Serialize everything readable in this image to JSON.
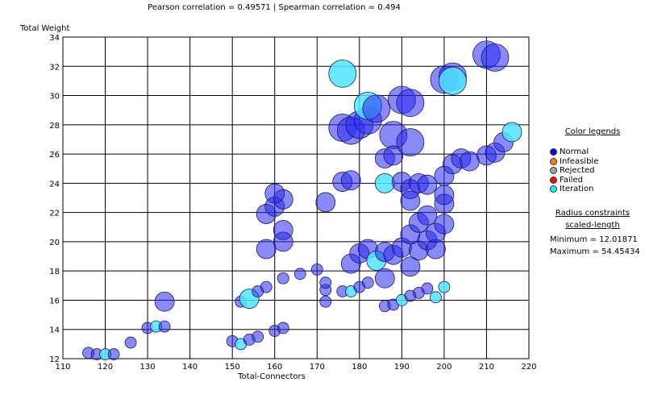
{
  "header": {
    "text": "Pearson correlation = 0.49571 | Spearman correlation = 0.494"
  },
  "legend": {
    "title": "Color legends",
    "items": [
      {
        "label": "Normal",
        "color": "#0000ff"
      },
      {
        "label": "Infeasible",
        "color": "#ff8000"
      },
      {
        "label": "Rejected",
        "color": "#a0a0a0"
      },
      {
        "label": "Failed",
        "color": "#ff0000"
      },
      {
        "label": "Iteration",
        "color": "#00ffff"
      }
    ]
  },
  "radius": {
    "title_line1": "Radius constraints",
    "title_line2": "scaled-length",
    "minimum": "Minimum = 12.01871",
    "maximum": "Maximum = 54.45434"
  },
  "chart_data": {
    "type": "scatter",
    "xlabel": "Total-Connectors",
    "ylabel": "Total Weight",
    "xlim": [
      110,
      220
    ],
    "ylim": [
      12,
      34
    ],
    "xticks": [
      110,
      120,
      130,
      140,
      150,
      160,
      170,
      180,
      190,
      200,
      210,
      220
    ],
    "yticks": [
      12,
      14,
      16,
      18,
      20,
      22,
      24,
      26,
      28,
      30,
      32,
      34
    ],
    "grid": true,
    "bubble_size_metric": "scaled-length",
    "points": [
      {
        "x": 116,
        "y": 12.4,
        "r": 1,
        "c": "Normal"
      },
      {
        "x": 118,
        "y": 12.3,
        "r": 1,
        "c": "Normal"
      },
      {
        "x": 120,
        "y": 12.3,
        "r": 1,
        "c": "Iteration"
      },
      {
        "x": 122,
        "y": 12.3,
        "r": 1,
        "c": "Normal"
      },
      {
        "x": 126,
        "y": 13.1,
        "r": 1,
        "c": "Normal"
      },
      {
        "x": 130,
        "y": 14.1,
        "r": 1,
        "c": "Normal"
      },
      {
        "x": 132,
        "y": 14.2,
        "r": 1,
        "c": "Iteration"
      },
      {
        "x": 134,
        "y": 14.2,
        "r": 1,
        "c": "Normal"
      },
      {
        "x": 134,
        "y": 15.9,
        "r": 2,
        "c": "Normal"
      },
      {
        "x": 150,
        "y": 13.2,
        "r": 1,
        "c": "Normal"
      },
      {
        "x": 152,
        "y": 13.0,
        "r": 1,
        "c": "Iteration"
      },
      {
        "x": 154,
        "y": 13.3,
        "r": 1,
        "c": "Normal"
      },
      {
        "x": 156,
        "y": 13.5,
        "r": 1,
        "c": "Normal"
      },
      {
        "x": 160,
        "y": 13.9,
        "r": 1,
        "c": "Normal"
      },
      {
        "x": 162,
        "y": 14.1,
        "r": 1,
        "c": "Normal"
      },
      {
        "x": 152,
        "y": 15.9,
        "r": 1,
        "c": "Normal"
      },
      {
        "x": 154,
        "y": 16.1,
        "r": 2,
        "c": "Iteration"
      },
      {
        "x": 156,
        "y": 16.6,
        "r": 1,
        "c": "Normal"
      },
      {
        "x": 158,
        "y": 16.9,
        "r": 1,
        "c": "Normal"
      },
      {
        "x": 162,
        "y": 17.5,
        "r": 1,
        "c": "Normal"
      },
      {
        "x": 158,
        "y": 19.5,
        "r": 2,
        "c": "Normal"
      },
      {
        "x": 162,
        "y": 20.0,
        "r": 2,
        "c": "Normal"
      },
      {
        "x": 162,
        "y": 20.8,
        "r": 2,
        "c": "Normal"
      },
      {
        "x": 158,
        "y": 21.9,
        "r": 2,
        "c": "Normal"
      },
      {
        "x": 160,
        "y": 22.4,
        "r": 2,
        "c": "Normal"
      },
      {
        "x": 162,
        "y": 22.9,
        "r": 2,
        "c": "Normal"
      },
      {
        "x": 160,
        "y": 23.3,
        "r": 2,
        "c": "Normal"
      },
      {
        "x": 166,
        "y": 17.8,
        "r": 1,
        "c": "Normal"
      },
      {
        "x": 170,
        "y": 18.1,
        "r": 1,
        "c": "Normal"
      },
      {
        "x": 172,
        "y": 15.9,
        "r": 1,
        "c": "Normal"
      },
      {
        "x": 172,
        "y": 16.7,
        "r": 1,
        "c": "Normal"
      },
      {
        "x": 172,
        "y": 17.2,
        "r": 1,
        "c": "Normal"
      },
      {
        "x": 172,
        "y": 22.7,
        "r": 2,
        "c": "Normal"
      },
      {
        "x": 176,
        "y": 16.6,
        "r": 1,
        "c": "Normal"
      },
      {
        "x": 178,
        "y": 16.6,
        "r": 1,
        "c": "Iteration"
      },
      {
        "x": 180,
        "y": 16.9,
        "r": 1,
        "c": "Normal"
      },
      {
        "x": 182,
        "y": 17.2,
        "r": 1,
        "c": "Normal"
      },
      {
        "x": 186,
        "y": 17.5,
        "r": 2,
        "c": "Normal"
      },
      {
        "x": 186,
        "y": 15.6,
        "r": 1,
        "c": "Normal"
      },
      {
        "x": 188,
        "y": 15.7,
        "r": 1,
        "c": "Normal"
      },
      {
        "x": 190,
        "y": 16.0,
        "r": 1,
        "c": "Iteration"
      },
      {
        "x": 192,
        "y": 16.3,
        "r": 1,
        "c": "Normal"
      },
      {
        "x": 194,
        "y": 16.5,
        "r": 1,
        "c": "Normal"
      },
      {
        "x": 196,
        "y": 16.8,
        "r": 1,
        "c": "Normal"
      },
      {
        "x": 198,
        "y": 16.2,
        "r": 1,
        "c": "Iteration"
      },
      {
        "x": 200,
        "y": 16.9,
        "r": 1,
        "c": "Iteration"
      },
      {
        "x": 178,
        "y": 18.5,
        "r": 2,
        "c": "Normal"
      },
      {
        "x": 180,
        "y": 19.2,
        "r": 2,
        "c": "Normal"
      },
      {
        "x": 182,
        "y": 19.5,
        "r": 2,
        "c": "Normal"
      },
      {
        "x": 184,
        "y": 18.7,
        "r": 2,
        "c": "Iteration"
      },
      {
        "x": 186,
        "y": 19.3,
        "r": 2,
        "c": "Normal"
      },
      {
        "x": 188,
        "y": 19.1,
        "r": 2,
        "c": "Normal"
      },
      {
        "x": 190,
        "y": 19.6,
        "r": 2,
        "c": "Normal"
      },
      {
        "x": 192,
        "y": 18.3,
        "r": 2,
        "c": "Normal"
      },
      {
        "x": 194,
        "y": 19.4,
        "r": 2,
        "c": "Normal"
      },
      {
        "x": 196,
        "y": 20.1,
        "r": 2,
        "c": "Normal"
      },
      {
        "x": 198,
        "y": 19.5,
        "r": 2,
        "c": "Normal"
      },
      {
        "x": 192,
        "y": 20.5,
        "r": 2,
        "c": "Normal"
      },
      {
        "x": 194,
        "y": 21.3,
        "r": 2,
        "c": "Normal"
      },
      {
        "x": 196,
        "y": 21.8,
        "r": 2,
        "c": "Normal"
      },
      {
        "x": 198,
        "y": 20.6,
        "r": 2,
        "c": "Normal"
      },
      {
        "x": 200,
        "y": 21.2,
        "r": 2,
        "c": "Normal"
      },
      {
        "x": 192,
        "y": 22.8,
        "r": 2,
        "c": "Normal"
      },
      {
        "x": 200,
        "y": 22.6,
        "r": 2,
        "c": "Normal"
      },
      {
        "x": 200,
        "y": 23.2,
        "r": 2,
        "c": "Normal"
      },
      {
        "x": 176,
        "y": 24.1,
        "r": 2,
        "c": "Normal"
      },
      {
        "x": 178,
        "y": 24.2,
        "r": 2,
        "c": "Normal"
      },
      {
        "x": 186,
        "y": 24.0,
        "r": 2,
        "c": "Iteration"
      },
      {
        "x": 190,
        "y": 24.1,
        "r": 2,
        "c": "Normal"
      },
      {
        "x": 192,
        "y": 23.6,
        "r": 2,
        "c": "Normal"
      },
      {
        "x": 194,
        "y": 24.0,
        "r": 2,
        "c": "Normal"
      },
      {
        "x": 196,
        "y": 23.9,
        "r": 2,
        "c": "Normal"
      },
      {
        "x": 200,
        "y": 24.5,
        "r": 2,
        "c": "Normal"
      },
      {
        "x": 202,
        "y": 25.3,
        "r": 2,
        "c": "Normal"
      },
      {
        "x": 204,
        "y": 25.7,
        "r": 2,
        "c": "Normal"
      },
      {
        "x": 206,
        "y": 25.5,
        "r": 2,
        "c": "Normal"
      },
      {
        "x": 210,
        "y": 25.9,
        "r": 2,
        "c": "Normal"
      },
      {
        "x": 212,
        "y": 26.1,
        "r": 2,
        "c": "Normal"
      },
      {
        "x": 214,
        "y": 26.8,
        "r": 2,
        "c": "Normal"
      },
      {
        "x": 216,
        "y": 27.5,
        "r": 2,
        "c": "Iteration"
      },
      {
        "x": 176,
        "y": 27.8,
        "r": 3,
        "c": "Normal"
      },
      {
        "x": 178,
        "y": 27.6,
        "r": 3,
        "c": "Normal"
      },
      {
        "x": 180,
        "y": 28.0,
        "r": 3,
        "c": "Normal"
      },
      {
        "x": 182,
        "y": 28.3,
        "r": 3,
        "c": "Normal"
      },
      {
        "x": 182,
        "y": 29.3,
        "r": 3,
        "c": "Iteration"
      },
      {
        "x": 184,
        "y": 29.1,
        "r": 3,
        "c": "Normal"
      },
      {
        "x": 188,
        "y": 27.3,
        "r": 3,
        "c": "Normal"
      },
      {
        "x": 190,
        "y": 29.7,
        "r": 3,
        "c": "Normal"
      },
      {
        "x": 192,
        "y": 29.5,
        "r": 3,
        "c": "Normal"
      },
      {
        "x": 186,
        "y": 25.7,
        "r": 2,
        "c": "Normal"
      },
      {
        "x": 188,
        "y": 25.9,
        "r": 2,
        "c": "Normal"
      },
      {
        "x": 192,
        "y": 26.8,
        "r": 3,
        "c": "Normal"
      },
      {
        "x": 176,
        "y": 31.5,
        "r": 3,
        "c": "Iteration"
      },
      {
        "x": 200,
        "y": 31.1,
        "r": 3,
        "c": "Normal"
      },
      {
        "x": 202,
        "y": 31.3,
        "r": 3,
        "c": "Normal"
      },
      {
        "x": 202,
        "y": 31.0,
        "r": 3,
        "c": "Iteration"
      },
      {
        "x": 210,
        "y": 32.8,
        "r": 3,
        "c": "Normal"
      },
      {
        "x": 212,
        "y": 32.6,
        "r": 3,
        "c": "Normal"
      }
    ]
  }
}
